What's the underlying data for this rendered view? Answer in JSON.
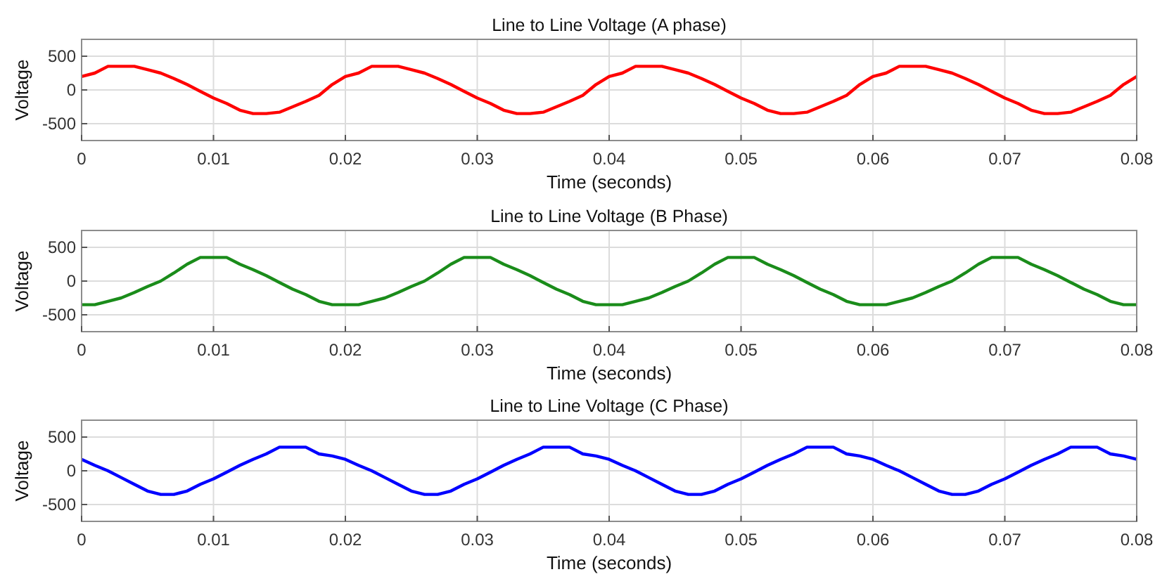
{
  "chart_data": [
    {
      "type": "line",
      "title": "Line to Line Voltage (A phase)",
      "xlabel": "Time (seconds)",
      "ylabel": "Voltage",
      "xlim": [
        0,
        0.08
      ],
      "ylim": [
        -750,
        750
      ],
      "xticks": [
        0,
        0.01,
        0.02,
        0.03,
        0.04,
        0.05,
        0.06,
        0.07,
        0.08
      ],
      "yticks": [
        -500,
        0,
        500
      ],
      "grid": true,
      "marker": "none",
      "line_style": "solid",
      "x": [
        0,
        0.001,
        0.002,
        0.003,
        0.004,
        0.005,
        0.006,
        0.007,
        0.008,
        0.009,
        0.01,
        0.011,
        0.012,
        0.013,
        0.014,
        0.015,
        0.016,
        0.017,
        0.018,
        0.019,
        0.02,
        0.021,
        0.022,
        0.023,
        0.024,
        0.025,
        0.026,
        0.027,
        0.028,
        0.029,
        0.03,
        0.031,
        0.032,
        0.033,
        0.034,
        0.035,
        0.036,
        0.037,
        0.038,
        0.039,
        0.04,
        0.041,
        0.042,
        0.043,
        0.044,
        0.045,
        0.046,
        0.047,
        0.048,
        0.049,
        0.05,
        0.051,
        0.052,
        0.053,
        0.054,
        0.055,
        0.056,
        0.057,
        0.058,
        0.059,
        0.06,
        0.061,
        0.062,
        0.063,
        0.064,
        0.065,
        0.066,
        0.067,
        0.068,
        0.069,
        0.07,
        0.071,
        0.072,
        0.073,
        0.074,
        0.075,
        0.076,
        0.077,
        0.078,
        0.079,
        0.08
      ],
      "series": [
        {
          "color": "#ff0000",
          "values": [
            200,
            250,
            350,
            350,
            350,
            300,
            250,
            170,
            80,
            -20,
            -120,
            -200,
            -300,
            -350,
            -350,
            -330,
            -250,
            -170,
            -80,
            80,
            200,
            250,
            350,
            350,
            350,
            300,
            250,
            170,
            80,
            -20,
            -120,
            -200,
            -300,
            -350,
            -350,
            -330,
            -250,
            -170,
            -80,
            80,
            200,
            250,
            350,
            350,
            350,
            300,
            250,
            170,
            80,
            -20,
            -120,
            -200,
            -300,
            -350,
            -350,
            -330,
            -250,
            -170,
            -80,
            80,
            200,
            250,
            350,
            350,
            350,
            300,
            250,
            170,
            80,
            -20,
            -120,
            -200,
            -300,
            -350,
            -350,
            -330,
            -250,
            -170,
            -80,
            80,
            200
          ]
        }
      ]
    },
    {
      "type": "line",
      "title": "Line to Line Voltage (B Phase)",
      "xlabel": "Time (seconds)",
      "ylabel": "Voltage",
      "xlim": [
        0,
        0.08
      ],
      "ylim": [
        -750,
        750
      ],
      "xticks": [
        0,
        0.01,
        0.02,
        0.03,
        0.04,
        0.05,
        0.06,
        0.07,
        0.08
      ],
      "yticks": [
        -500,
        0,
        500
      ],
      "grid": true,
      "marker": "none",
      "line_style": "solid",
      "x": [
        0,
        0.001,
        0.002,
        0.003,
        0.004,
        0.005,
        0.006,
        0.007,
        0.008,
        0.009,
        0.01,
        0.011,
        0.012,
        0.013,
        0.014,
        0.015,
        0.016,
        0.017,
        0.018,
        0.019,
        0.02,
        0.021,
        0.022,
        0.023,
        0.024,
        0.025,
        0.026,
        0.027,
        0.028,
        0.029,
        0.03,
        0.031,
        0.032,
        0.033,
        0.034,
        0.035,
        0.036,
        0.037,
        0.038,
        0.039,
        0.04,
        0.041,
        0.042,
        0.043,
        0.044,
        0.045,
        0.046,
        0.047,
        0.048,
        0.049,
        0.05,
        0.051,
        0.052,
        0.053,
        0.054,
        0.055,
        0.056,
        0.057,
        0.058,
        0.059,
        0.06,
        0.061,
        0.062,
        0.063,
        0.064,
        0.065,
        0.066,
        0.067,
        0.068,
        0.069,
        0.07,
        0.071,
        0.072,
        0.073,
        0.074,
        0.075,
        0.076,
        0.077,
        0.078,
        0.079,
        0.08
      ],
      "series": [
        {
          "color": "#1a8c1a",
          "values": [
            -350,
            -350,
            -300,
            -250,
            -170,
            -80,
            0,
            120,
            250,
            350,
            350,
            350,
            250,
            170,
            80,
            -20,
            -120,
            -200,
            -300,
            -350,
            -350,
            -350,
            -300,
            -250,
            -170,
            -80,
            0,
            120,
            250,
            350,
            350,
            350,
            250,
            170,
            80,
            -20,
            -120,
            -200,
            -300,
            -350,
            -350,
            -350,
            -300,
            -250,
            -170,
            -80,
            0,
            120,
            250,
            350,
            350,
            350,
            250,
            170,
            80,
            -20,
            -120,
            -200,
            -300,
            -350,
            -350,
            -350,
            -300,
            -250,
            -170,
            -80,
            0,
            120,
            250,
            350,
            350,
            350,
            250,
            170,
            80,
            -20,
            -120,
            -200,
            -300,
            -350,
            -350
          ]
        }
      ]
    },
    {
      "type": "line",
      "title": "Line to Line Voltage (C Phase)",
      "xlabel": "Time (seconds)",
      "ylabel": "Voltage",
      "xlim": [
        0,
        0.08
      ],
      "ylim": [
        -750,
        750
      ],
      "xticks": [
        0,
        0.01,
        0.02,
        0.03,
        0.04,
        0.05,
        0.06,
        0.07,
        0.08
      ],
      "yticks": [
        -500,
        0,
        500
      ],
      "grid": true,
      "marker": "none",
      "line_style": "solid",
      "x": [
        0,
        0.001,
        0.002,
        0.003,
        0.004,
        0.005,
        0.006,
        0.007,
        0.008,
        0.009,
        0.01,
        0.011,
        0.012,
        0.013,
        0.014,
        0.015,
        0.016,
        0.017,
        0.018,
        0.019,
        0.02,
        0.021,
        0.022,
        0.023,
        0.024,
        0.025,
        0.026,
        0.027,
        0.028,
        0.029,
        0.03,
        0.031,
        0.032,
        0.033,
        0.034,
        0.035,
        0.036,
        0.037,
        0.038,
        0.039,
        0.04,
        0.041,
        0.042,
        0.043,
        0.044,
        0.045,
        0.046,
        0.047,
        0.048,
        0.049,
        0.05,
        0.051,
        0.052,
        0.053,
        0.054,
        0.055,
        0.056,
        0.057,
        0.058,
        0.059,
        0.06,
        0.061,
        0.062,
        0.063,
        0.064,
        0.065,
        0.066,
        0.067,
        0.068,
        0.069,
        0.07,
        0.071,
        0.072,
        0.073,
        0.074,
        0.075,
        0.076,
        0.077,
        0.078,
        0.079,
        0.08
      ],
      "series": [
        {
          "color": "#0000ff",
          "values": [
            170,
            80,
            0,
            -100,
            -200,
            -300,
            -350,
            -350,
            -300,
            -200,
            -120,
            -20,
            80,
            170,
            250,
            350,
            350,
            350,
            250,
            220,
            170,
            80,
            0,
            -100,
            -200,
            -300,
            -350,
            -350,
            -300,
            -200,
            -120,
            -20,
            80,
            170,
            250,
            350,
            350,
            350,
            250,
            220,
            170,
            80,
            0,
            -100,
            -200,
            -300,
            -350,
            -350,
            -300,
            -200,
            -120,
            -20,
            80,
            170,
            250,
            350,
            350,
            350,
            250,
            220,
            170,
            80,
            0,
            -100,
            -200,
            -300,
            -350,
            -350,
            -300,
            -200,
            -120,
            -20,
            80,
            170,
            250,
            350,
            350,
            350,
            250,
            220,
            170
          ]
        }
      ]
    }
  ]
}
